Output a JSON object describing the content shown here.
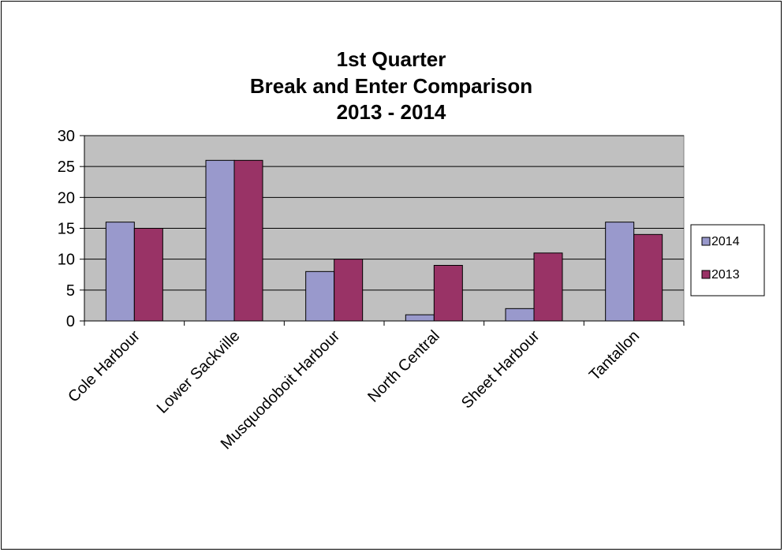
{
  "chart_data": {
    "type": "bar",
    "title_lines": [
      "1st Quarter",
      "Break and Enter Comparison",
      "2013 - 2014"
    ],
    "categories": [
      "Cole Harbour",
      "Lower Sackville",
      "Musquodoboit Harbour",
      "North Central",
      "Sheet Harbour",
      "Tantallon"
    ],
    "series": [
      {
        "name": "2014",
        "values": [
          16,
          26,
          8,
          1,
          2,
          16
        ],
        "color": "#9999cc"
      },
      {
        "name": "2013",
        "values": [
          15,
          26,
          10,
          9,
          11,
          14
        ],
        "color": "#993366"
      }
    ],
    "ylim": [
      0,
      30
    ],
    "yticks": [
      "0",
      "5",
      "10",
      "15",
      "20",
      "25",
      "30"
    ],
    "grid": true,
    "plot_background": "#c0c0c0",
    "legend_position": "right"
  }
}
